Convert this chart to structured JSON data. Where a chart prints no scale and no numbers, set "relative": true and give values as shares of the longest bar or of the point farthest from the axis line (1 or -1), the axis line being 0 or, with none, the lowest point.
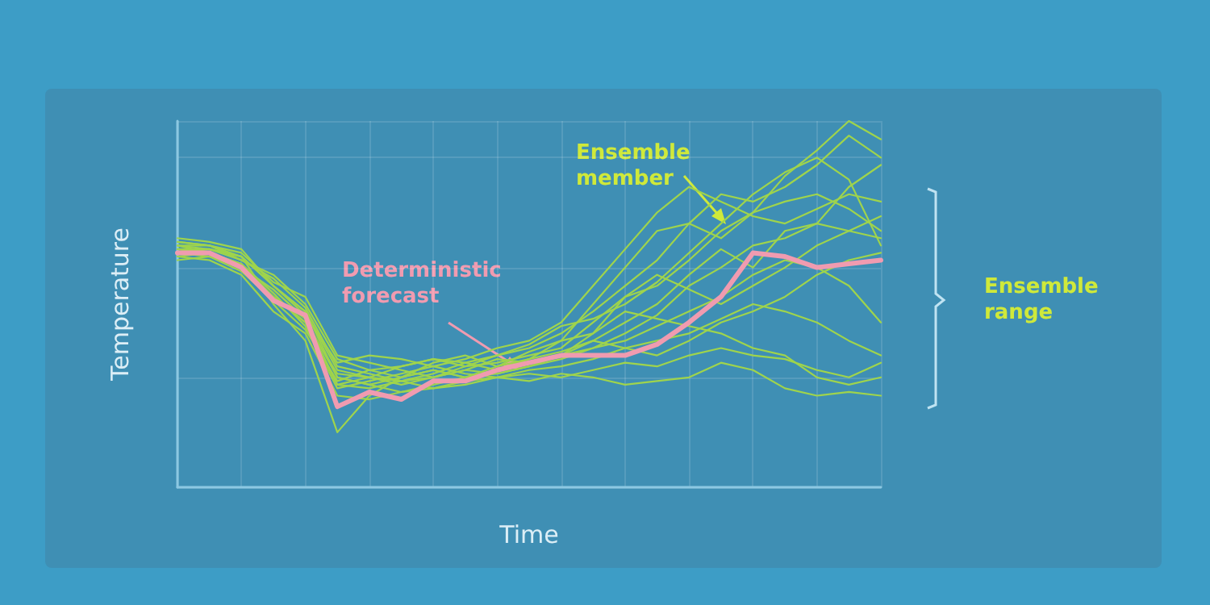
{
  "chart_data": {
    "type": "line",
    "relative": true,
    "xlabel": "Time",
    "ylabel": "Temperature",
    "grid": true,
    "marker": "none",
    "line_style": "solid",
    "categories": [
      null,
      null,
      null,
      null,
      null,
      null,
      null,
      null,
      null,
      null,
      null,
      null,
      null,
      null,
      null,
      null,
      null,
      null,
      null,
      null,
      null,
      null,
      null
    ],
    "annotations": [
      "Deterministic forecast",
      "Ensemble member",
      "Ensemble range"
    ],
    "series": [
      {
        "color": "#9fd44c",
        "values": [
          0.68,
          0.67,
          0.65,
          0.55,
          0.48,
          0.3,
          0.28,
          0.3,
          0.32,
          0.3,
          0.32,
          0.35,
          0.4,
          0.5,
          0.6,
          0.7,
          0.72,
          0.68,
          0.75,
          0.85,
          0.92,
          1.0,
          0.95
        ]
      },
      {
        "color": "#9fd44c",
        "values": [
          0.66,
          0.66,
          0.62,
          0.58,
          0.5,
          0.35,
          0.32,
          0.33,
          0.35,
          0.34,
          0.36,
          0.38,
          0.42,
          0.48,
          0.55,
          0.62,
          0.72,
          0.8,
          0.78,
          0.82,
          0.88,
          0.96,
          0.9
        ]
      },
      {
        "color": "#9fd44c",
        "values": [
          0.65,
          0.64,
          0.6,
          0.52,
          0.45,
          0.28,
          0.3,
          0.28,
          0.3,
          0.33,
          0.34,
          0.36,
          0.38,
          0.45,
          0.52,
          0.55,
          0.62,
          0.7,
          0.75,
          0.78,
          0.8,
          0.76,
          0.7
        ]
      },
      {
        "color": "#9fd44c",
        "values": [
          0.64,
          0.65,
          0.63,
          0.5,
          0.4,
          0.15,
          0.25,
          0.3,
          0.32,
          0.3,
          0.33,
          0.35,
          0.37,
          0.4,
          0.45,
          0.5,
          0.58,
          0.65,
          0.6,
          0.7,
          0.72,
          0.82,
          0.88
        ]
      },
      {
        "color": "#9fd44c",
        "values": [
          0.63,
          0.62,
          0.58,
          0.48,
          0.42,
          0.25,
          0.24,
          0.26,
          0.28,
          0.3,
          0.31,
          0.33,
          0.35,
          0.38,
          0.42,
          0.47,
          0.55,
          0.6,
          0.66,
          0.68,
          0.72,
          0.7,
          0.74
        ]
      },
      {
        "color": "#9fd44c",
        "values": [
          0.67,
          0.66,
          0.64,
          0.56,
          0.52,
          0.36,
          0.34,
          0.32,
          0.3,
          0.32,
          0.35,
          0.34,
          0.36,
          0.38,
          0.4,
          0.44,
          0.48,
          0.52,
          0.58,
          0.62,
          0.6,
          0.55,
          0.45
        ]
      },
      {
        "color": "#9fd44c",
        "values": [
          0.62,
          0.63,
          0.6,
          0.54,
          0.46,
          0.3,
          0.28,
          0.26,
          0.27,
          0.29,
          0.3,
          0.32,
          0.33,
          0.35,
          0.38,
          0.4,
          0.42,
          0.46,
          0.5,
          0.48,
          0.45,
          0.4,
          0.36
        ]
      },
      {
        "color": "#9fd44c",
        "values": [
          0.65,
          0.64,
          0.61,
          0.53,
          0.44,
          0.27,
          0.29,
          0.31,
          0.33,
          0.31,
          0.3,
          0.31,
          0.3,
          0.32,
          0.34,
          0.33,
          0.36,
          0.38,
          0.36,
          0.35,
          0.32,
          0.3,
          0.34
        ]
      },
      {
        "color": "#9fd44c",
        "values": [
          0.66,
          0.65,
          0.62,
          0.57,
          0.49,
          0.33,
          0.31,
          0.29,
          0.27,
          0.28,
          0.3,
          0.29,
          0.31,
          0.3,
          0.28,
          0.29,
          0.3,
          0.34,
          0.32,
          0.27,
          0.25,
          0.26,
          0.25
        ]
      },
      {
        "color": "#9fd44c",
        "values": [
          0.64,
          0.63,
          0.59,
          0.51,
          0.43,
          0.29,
          0.32,
          0.3,
          0.34,
          0.36,
          0.33,
          0.37,
          0.4,
          0.42,
          0.48,
          0.46,
          0.44,
          0.42,
          0.38,
          0.36,
          0.3,
          0.28,
          0.3
        ]
      },
      {
        "color": "#9fd44c",
        "values": [
          0.67,
          0.66,
          0.63,
          0.55,
          0.47,
          0.34,
          0.36,
          0.35,
          0.33,
          0.35,
          0.38,
          0.4,
          0.45,
          0.55,
          0.65,
          0.75,
          0.82,
          0.78,
          0.74,
          0.72,
          0.76,
          0.8,
          0.78
        ]
      },
      {
        "color": "#9fd44c",
        "values": [
          0.63,
          0.64,
          0.61,
          0.52,
          0.45,
          0.31,
          0.3,
          0.33,
          0.35,
          0.33,
          0.36,
          0.39,
          0.44,
          0.46,
          0.5,
          0.56,
          0.64,
          0.72,
          0.8,
          0.86,
          0.9,
          0.84,
          0.66
        ]
      },
      {
        "color": "#9fd44c",
        "values": [
          0.65,
          0.65,
          0.63,
          0.55,
          0.48,
          0.32,
          0.3,
          0.29,
          0.31,
          0.34,
          0.32,
          0.34,
          0.36,
          0.4,
          0.38,
          0.36,
          0.4,
          0.45,
          0.48,
          0.52,
          0.58,
          0.62,
          0.64
        ]
      },
      {
        "color": "#9fd44c",
        "values": [
          0.66,
          0.64,
          0.6,
          0.52,
          0.46,
          0.28,
          0.27,
          0.29,
          0.3,
          0.32,
          0.31,
          0.33,
          0.36,
          0.42,
          0.52,
          0.58,
          0.54,
          0.5,
          0.55,
          0.6,
          0.66,
          0.7,
          0.68
        ]
      },
      {
        "color": "#f09bb0",
        "values": [
          0.64,
          0.64,
          0.6,
          0.51,
          0.47,
          0.22,
          0.26,
          0.24,
          0.29,
          0.29,
          0.32,
          0.34,
          0.36,
          0.36,
          0.36,
          0.39,
          0.45,
          0.52,
          0.64,
          0.63,
          0.6,
          0.61,
          0.62
        ]
      }
    ]
  }
}
